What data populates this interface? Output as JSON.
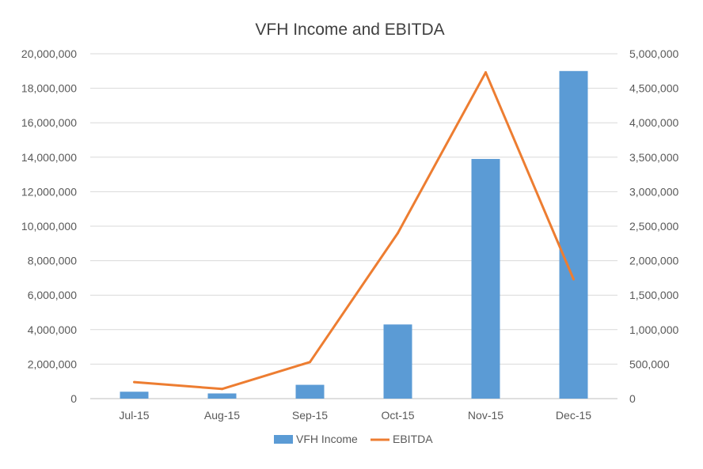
{
  "colors": {
    "bar": "#5b9bd5",
    "line": "#ed7d31",
    "grid": "#d9d9d9",
    "text": "#595959",
    "title": "#404040"
  },
  "chart_data": {
    "type": "bar",
    "title": "VFH Income and EBITDA",
    "xlabel": "",
    "ylabel": "",
    "categories": [
      "Jul-15",
      "Aug-15",
      "Sep-15",
      "Oct-15",
      "Nov-15",
      "Dec-15"
    ],
    "series": [
      {
        "name": "VFH Income",
        "type": "bar",
        "axis": "left",
        "values": [
          400000,
          300000,
          800000,
          4300000,
          13900000,
          19000000
        ]
      },
      {
        "name": "EBITDA",
        "type": "line",
        "axis": "right",
        "values": [
          240000,
          140000,
          530000,
          2400000,
          4730000,
          1730000
        ]
      }
    ],
    "ylim": [
      0,
      20000000
    ],
    "yticks": [
      "0",
      "2,000,000",
      "4,000,000",
      "6,000,000",
      "8,000,000",
      "10,000,000",
      "12,000,000",
      "14,000,000",
      "16,000,000",
      "18,000,000",
      "20,000,000"
    ],
    "y2lim": [
      0,
      5000000
    ],
    "y2ticks": [
      "0",
      "500,000",
      "1,000,000",
      "1,500,000",
      "2,000,000",
      "2,500,000",
      "3,000,000",
      "3,500,000",
      "4,000,000",
      "4,500,000",
      "5,000,000"
    ],
    "grid": true,
    "legend": "bottom"
  }
}
